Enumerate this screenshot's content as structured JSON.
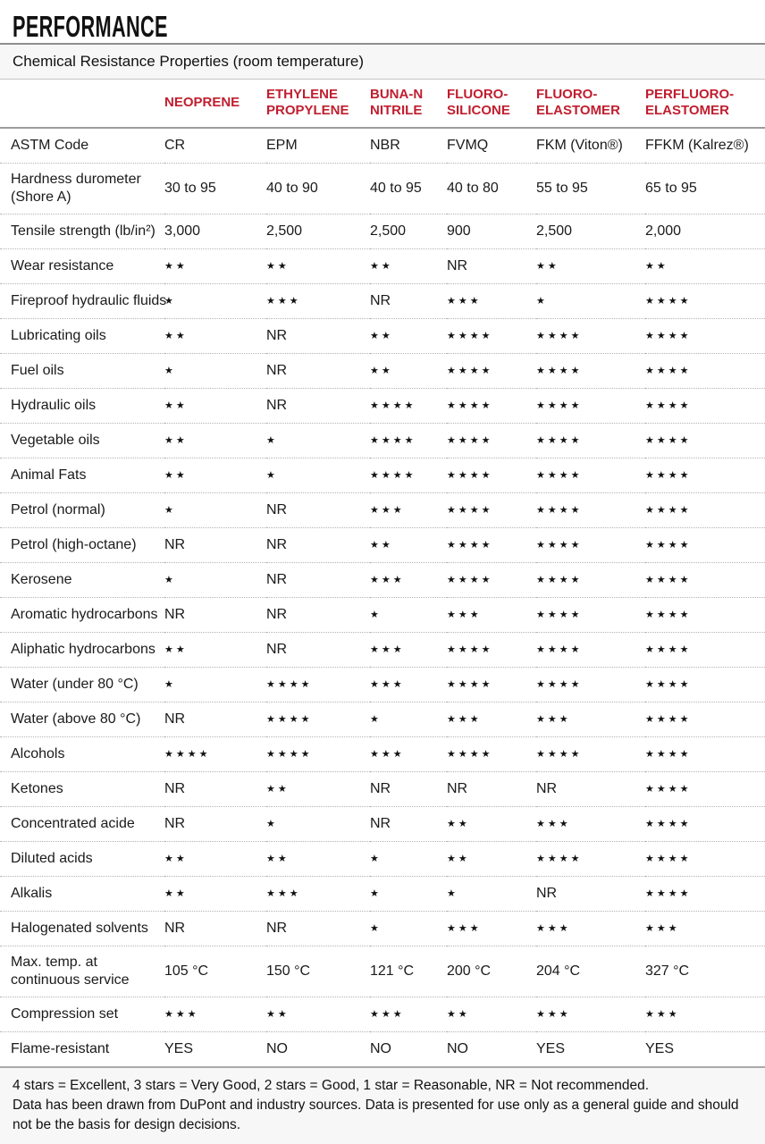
{
  "page": {
    "title": "PERFORMANCE",
    "subtitle": "Chemical Resistance Properties (room temperature)"
  },
  "colors": {
    "accent_red": "#C01E2F"
  },
  "table": {
    "columns": [
      "NEOPRENE",
      "ETHYLENE\nPROPYLENE",
      "BUNA-N\nNITRILE",
      "FLUORO-\nSILICONE",
      "FLUORO-\nELASTOMER",
      "PERFLUORO-\nELASTOMER"
    ],
    "rows": [
      {
        "label": "ASTM Code",
        "values": [
          "CR",
          "EPM",
          "NBR",
          "FVMQ",
          "FKM (Viton®)",
          "FFKM (Kalrez®)"
        ]
      },
      {
        "label": "Hardness durometer\n(Shore A)",
        "values": [
          "30 to 95",
          "40 to 90",
          "40 to 95",
          "40 to 80",
          "55 to 95",
          "65 to 95"
        ]
      },
      {
        "label": "Tensile strength (lb/in²)",
        "values": [
          "3,000",
          "2,500",
          "2,500",
          "900",
          "2,500",
          "2,000"
        ]
      },
      {
        "label": "Wear resistance",
        "values": [
          "★★",
          "★★",
          "★★",
          "NR",
          "★★",
          "★★"
        ]
      },
      {
        "label": "Fireproof hydraulic fluids",
        "values": [
          "★",
          "★★★",
          "NR",
          "★★★",
          "★",
          "★★★★"
        ]
      },
      {
        "label": "Lubricating oils",
        "values": [
          "★★",
          "NR",
          "★★",
          "★★★★",
          "★★★★",
          "★★★★"
        ]
      },
      {
        "label": "Fuel oils",
        "values": [
          "★",
          "NR",
          "★★",
          "★★★★",
          "★★★★",
          "★★★★"
        ]
      },
      {
        "label": "Hydraulic oils",
        "values": [
          "★★",
          "NR",
          "★★★★",
          "★★★★",
          "★★★★",
          "★★★★"
        ]
      },
      {
        "label": "Vegetable oils",
        "values": [
          "★★",
          "★",
          "★★★★",
          "★★★★",
          "★★★★",
          "★★★★"
        ]
      },
      {
        "label": "Animal Fats",
        "values": [
          "★★",
          "★",
          "★★★★",
          "★★★★",
          "★★★★",
          "★★★★"
        ]
      },
      {
        "label": "Petrol (normal)",
        "values": [
          "★",
          "NR",
          "★★★",
          "★★★★",
          "★★★★",
          "★★★★"
        ]
      },
      {
        "label": "Petrol (high-octane)",
        "values": [
          "NR",
          "NR",
          "★★",
          "★★★★",
          "★★★★",
          "★★★★"
        ]
      },
      {
        "label": "Kerosene",
        "values": [
          "★",
          "NR",
          "★★★",
          "★★★★",
          "★★★★",
          "★★★★"
        ]
      },
      {
        "label": "Aromatic hydrocarbons",
        "values": [
          "NR",
          "NR",
          "★",
          "★★★",
          "★★★★",
          "★★★★"
        ]
      },
      {
        "label": "Aliphatic hydrocarbons",
        "values": [
          "★★",
          "NR",
          "★★★",
          "★★★★",
          "★★★★",
          "★★★★"
        ]
      },
      {
        "label": "Water (under 80 °C)",
        "values": [
          "★",
          "★★★★",
          "★★★",
          "★★★★",
          "★★★★",
          "★★★★"
        ]
      },
      {
        "label": "Water (above 80 °C)",
        "values": [
          "NR",
          "★★★★",
          "★",
          "★★★",
          "★★★",
          "★★★★"
        ]
      },
      {
        "label": "Alcohols",
        "values": [
          "★★★★",
          "★★★★",
          "★★★",
          "★★★★",
          "★★★★",
          "★★★★"
        ]
      },
      {
        "label": "Ketones",
        "values": [
          "NR",
          "★★",
          "NR",
          "NR",
          "NR",
          "★★★★"
        ]
      },
      {
        "label": "Concentrated acide",
        "values": [
          "NR",
          "★",
          "NR",
          "★★",
          "★★★",
          "★★★★"
        ]
      },
      {
        "label": "Diluted acids",
        "values": [
          "★★",
          "★★",
          "★",
          "★★",
          "★★★★",
          "★★★★"
        ]
      },
      {
        "label": "Alkalis",
        "values": [
          "★★",
          "★★★",
          "★",
          "★",
          "NR",
          "★★★★"
        ]
      },
      {
        "label": "Halogenated solvents",
        "values": [
          "NR",
          "NR",
          "★",
          "★★★",
          "★★★",
          "★★★"
        ]
      },
      {
        "label": "Max. temp. at\ncontinuous service",
        "values": [
          "105 °C",
          "150 °C",
          "121 °C",
          "200 °C",
          "204 °C",
          "327 °C"
        ]
      },
      {
        "label": "Compression set",
        "values": [
          "★★★",
          "★★",
          "★★★",
          "★★",
          "★★★",
          "★★★"
        ]
      },
      {
        "label": "Flame-resistant",
        "values": [
          "YES",
          "NO",
          "NO",
          "NO",
          "YES",
          "YES"
        ]
      }
    ]
  },
  "footer": {
    "line1": "4 stars = Excellent, 3 stars = Very Good, 2 stars = Good, 1 star = Reasonable, NR = Not recommended.",
    "line2": "Data has been drawn from DuPont and industry sources. Data is presented for use only as a general guide and should not be the basis for design decisions."
  }
}
